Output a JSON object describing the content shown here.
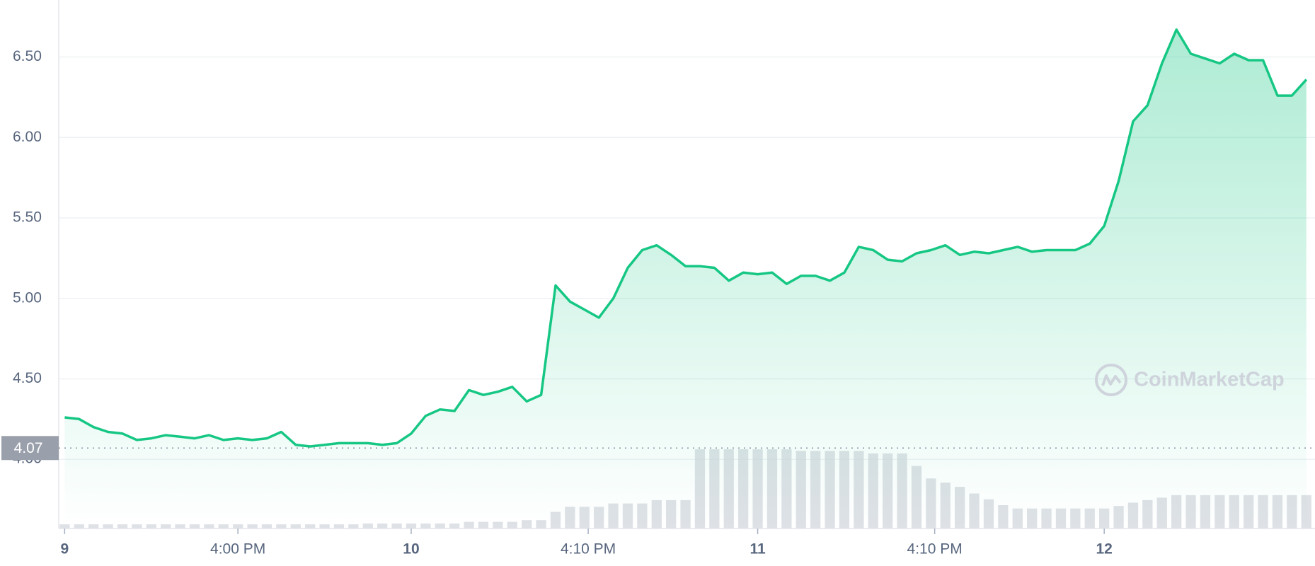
{
  "chart_data": {
    "type": "line",
    "color": "#16c784",
    "volume_color": "#d3d7de",
    "grid": true,
    "xlim": [
      -0.41,
      86.6
    ],
    "ylim": [
      3.57,
      6.854
    ],
    "yticks": [
      {
        "value": 4.0,
        "label": "4.00"
      },
      {
        "value": 4.5,
        "label": "4.50"
      },
      {
        "value": 5.0,
        "label": "5.00"
      },
      {
        "value": 5.5,
        "label": "5.50"
      },
      {
        "value": 6.0,
        "label": "6.00"
      },
      {
        "value": 6.5,
        "label": "6.50"
      }
    ],
    "xticks": [
      {
        "value": 0,
        "label": "9"
      },
      {
        "value": 12,
        "label": "4:00 PM"
      },
      {
        "value": 24,
        "label": "10"
      },
      {
        "value": 36.26,
        "label": "4:10 PM"
      },
      {
        "value": 48,
        "label": "11"
      },
      {
        "value": 60.26,
        "label": "4:10 PM"
      },
      {
        "value": 72,
        "label": "12"
      }
    ],
    "current": 4.07,
    "watermark": "CoinMarketCap",
    "x": [
      0,
      1,
      2,
      3,
      4,
      5,
      6,
      7,
      8,
      9,
      10,
      11,
      12,
      13,
      14,
      15,
      16,
      17,
      18,
      19,
      20,
      21,
      22,
      23,
      24,
      25,
      26,
      27,
      28,
      29,
      30,
      31,
      32,
      33,
      34,
      35,
      36,
      37,
      38,
      39,
      40,
      41,
      42,
      43,
      44,
      45,
      46,
      47,
      48,
      49,
      50,
      51,
      52,
      53,
      54,
      55,
      56,
      57,
      58,
      59,
      60,
      61,
      62,
      63,
      64,
      65,
      66,
      67,
      68,
      69,
      70,
      71,
      72,
      73,
      74,
      75,
      76,
      77,
      78,
      79,
      80,
      81,
      82,
      83,
      84,
      85,
      86
    ],
    "values": [
      4.26,
      4.25,
      4.2,
      4.17,
      4.16,
      4.12,
      4.13,
      4.15,
      4.14,
      4.13,
      4.15,
      4.12,
      4.13,
      4.12,
      4.13,
      4.17,
      4.09,
      4.08,
      4.09,
      4.1,
      4.1,
      4.1,
      4.09,
      4.1,
      4.16,
      4.27,
      4.31,
      4.3,
      4.43,
      4.4,
      4.42,
      4.45,
      4.36,
      4.4,
      5.08,
      4.98,
      4.93,
      4.88,
      5.0,
      5.19,
      5.3,
      5.33,
      5.27,
      5.2,
      5.2,
      5.19,
      5.11,
      5.16,
      5.15,
      5.16,
      5.09,
      5.14,
      5.14,
      5.11,
      5.16,
      5.32,
      5.3,
      5.24,
      5.23,
      5.28,
      5.3,
      5.33,
      5.27,
      5.29,
      5.28,
      5.3,
      5.32,
      5.29,
      5.3,
      5.3,
      5.3,
      5.34,
      5.45,
      5.73,
      6.1,
      6.2,
      6.46,
      6.67,
      6.52,
      6.49,
      6.46,
      6.52,
      6.48,
      6.48,
      6.26,
      6.26,
      6.36
    ],
    "volume": [
      5,
      5,
      5,
      5,
      5,
      5,
      5,
      5,
      5,
      5,
      5,
      5,
      5,
      5,
      5,
      5,
      5,
      5,
      5,
      5,
      5,
      6,
      6,
      6,
      6,
      6,
      6,
      6,
      8,
      8,
      8,
      8,
      10,
      10,
      20,
      26,
      26,
      26,
      30,
      30,
      30,
      34,
      34,
      34,
      95,
      95,
      95,
      95,
      95,
      95,
      95,
      93,
      93,
      93,
      93,
      93,
      90,
      90,
      90,
      75,
      60,
      55,
      50,
      42,
      35,
      28,
      24,
      24,
      24,
      24,
      24,
      24,
      24,
      27,
      31,
      34,
      37,
      40,
      40,
      40,
      40,
      40,
      40,
      40,
      40,
      40,
      40
    ]
  }
}
